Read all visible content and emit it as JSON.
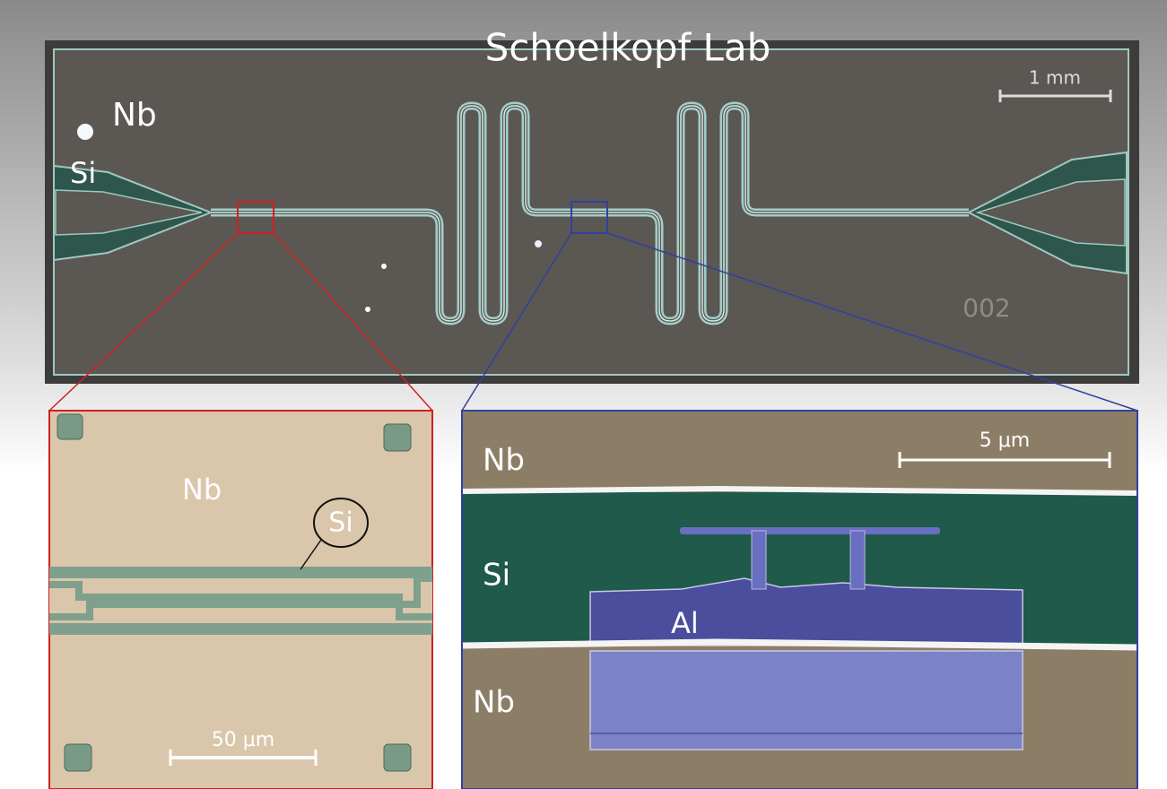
{
  "header": {
    "title": "Schoelkopf Lab"
  },
  "chip": {
    "labels": [
      "Nb",
      "Si"
    ],
    "scale_bar": "1 mm",
    "chip_id": "002"
  },
  "left_inset": {
    "labels": [
      "Nb",
      "Si"
    ],
    "scale_bar": "50 μm"
  },
  "right_inset": {
    "labels": [
      "Nb",
      "Si",
      "Al",
      "Nb"
    ],
    "scale_bar": "5 μm"
  }
}
